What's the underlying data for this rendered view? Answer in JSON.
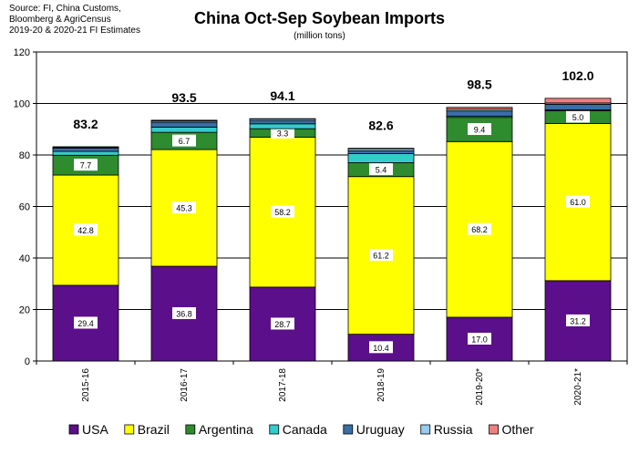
{
  "source_lines": [
    "Source: FI, China Customs,",
    "Bloomberg & AgriCensus",
    "2019-20 & 2020-21 FI Estimates"
  ],
  "colors": {
    "USA": "#5b0f8a",
    "Brazil": "#ffff00",
    "Argentina": "#2e8b2e",
    "Canada": "#33cccc",
    "Uruguay": "#3a6ea5",
    "Russia": "#99ccee",
    "Other": "#f08080"
  },
  "chart_data": {
    "type": "bar",
    "stacked": true,
    "title": "China Oct-Sep Soybean Imports",
    "subtitle": "(million tons)",
    "xlabel": "",
    "ylabel": "",
    "ylim": [
      0,
      120
    ],
    "yticks": [
      0,
      20,
      40,
      60,
      80,
      100,
      120
    ],
    "grid": true,
    "legend_position": "bottom",
    "categories": [
      "2015-16",
      "2016-17",
      "2017-18",
      "2018-19",
      "2019-20*",
      "2020-21*"
    ],
    "totals": [
      "83.2",
      "93.5",
      "94.1",
      "82.6",
      "98.5",
      "102.0"
    ],
    "series": [
      {
        "name": "USA",
        "values": [
          29.4,
          36.8,
          28.7,
          10.4,
          17.0,
          31.2
        ],
        "labels": [
          "29.4",
          "36.8",
          "28.7",
          "10.4",
          "17.0",
          "31.2"
        ]
      },
      {
        "name": "Brazil",
        "values": [
          42.8,
          45.3,
          58.2,
          61.2,
          68.2,
          61.0
        ],
        "labels": [
          "42.8",
          "45.3",
          "58.2",
          "61.2",
          "68.2",
          "61.0"
        ]
      },
      {
        "name": "Argentina",
        "values": [
          7.7,
          6.7,
          3.3,
          5.4,
          9.4,
          5.0
        ],
        "labels": [
          "7.7",
          "6.7",
          "3.3",
          "5.4",
          "9.4",
          "5.0"
        ]
      },
      {
        "name": "Canada",
        "values": [
          1.5,
          2.0,
          1.9,
          3.5,
          0.5,
          0.3
        ],
        "labels": []
      },
      {
        "name": "Uruguay",
        "values": [
          1.3,
          1.9,
          1.3,
          1.1,
          2.0,
          2.2
        ],
        "labels": []
      },
      {
        "name": "Russia",
        "values": [
          0.3,
          0.5,
          0.6,
          0.8,
          0.7,
          0.5
        ],
        "labels": []
      },
      {
        "name": "Other",
        "values": [
          0.2,
          0.3,
          0.1,
          0.2,
          0.7,
          1.8
        ],
        "labels": []
      }
    ]
  }
}
